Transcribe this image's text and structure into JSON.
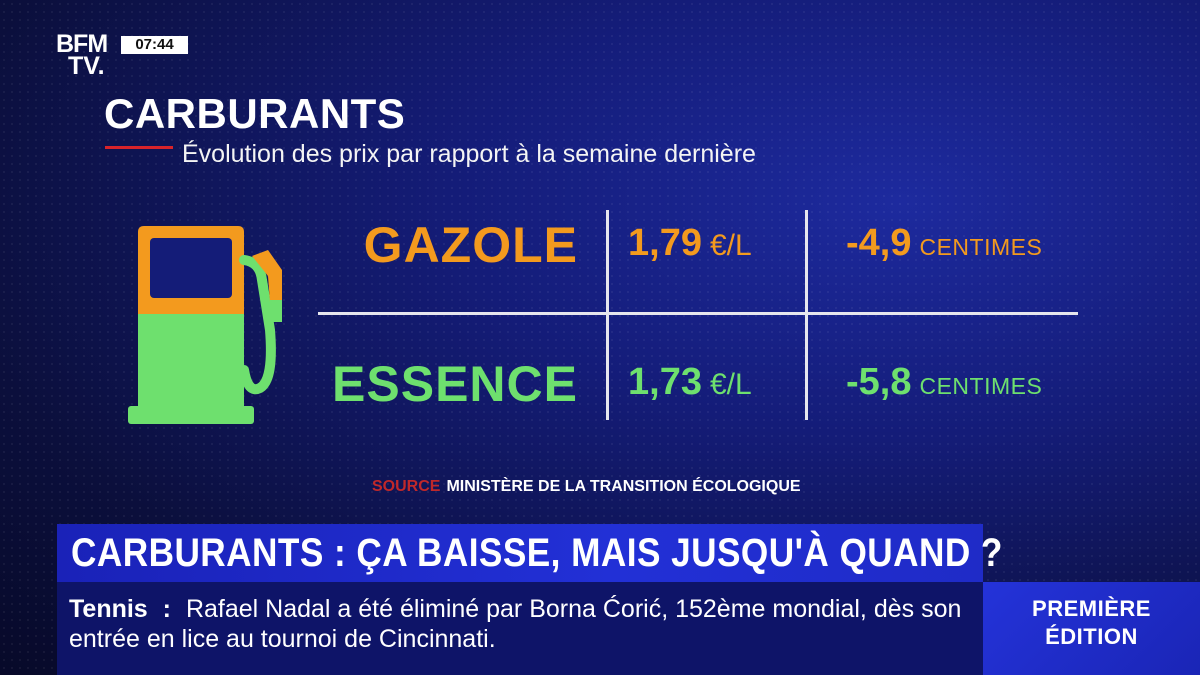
{
  "channel": {
    "logo_line1": "BFM",
    "logo_line2": "TV.",
    "clock": "07:44"
  },
  "graphic": {
    "title": "CARBURANTS",
    "subtitle": "Évolution des prix par rapport à la semaine dernière",
    "rows": [
      {
        "name": "GAZOLE",
        "price": "1,79",
        "unit": "€/L",
        "delta": "-4,9",
        "delta_unit": "CENTIMES",
        "color": "#f39a1e"
      },
      {
        "name": "ESSENCE",
        "price": "1,73",
        "unit": "€/L",
        "delta": "-5,8",
        "delta_unit": "CENTIMES",
        "color": "#6ee06e"
      }
    ],
    "source_label": "SOURCE",
    "source_text": "MINISTÈRE DE LA TRANSITION ÉCOLOGIQUE"
  },
  "headline": "CARBURANTS : ÇA BAISSE, MAIS JUSQU'À QUAND ?",
  "ticker": {
    "category": "Tennis",
    "separator": ":",
    "text": "Rafael Nadal a été éliminé par Borna Ćorić, 152ème mondial, dès son entrée en lice au tournoi de Cincinnati."
  },
  "edition": {
    "line1": "PREMIÈRE",
    "line2": "ÉDITION"
  },
  "colors": {
    "accent_red": "#d8232a",
    "banner_blue": "#2230d6",
    "orange": "#f39a1e",
    "green": "#6ee06e"
  }
}
